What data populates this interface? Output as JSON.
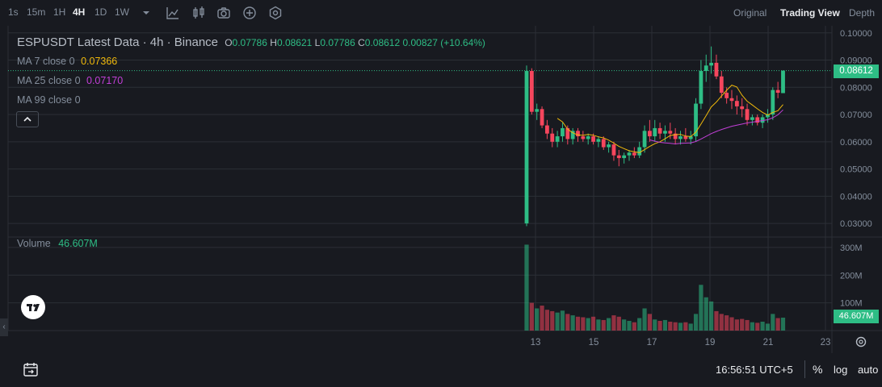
{
  "toolbar": {
    "timeframes": [
      "1s",
      "15m",
      "1H",
      "4H",
      "1D",
      "1W"
    ],
    "active_timeframe": "4H",
    "views": [
      "Original",
      "Trading View",
      "Depth"
    ],
    "active_view": "Trading View"
  },
  "legend": {
    "symbol_line": "ESPUSDT Latest Data · 4h · Binance",
    "o_label": "O",
    "o_value": "0.07786",
    "h_label": "H",
    "h_value": "0.08621",
    "l_label": "L",
    "l_value": "0.07786",
    "c_label": "C",
    "c_value": "0.08612",
    "change": "0.00827 (+10.64%)",
    "ma7_label": "MA 7 close 0",
    "ma7_value": "0.07366",
    "ma25_label": "MA 25 close 0",
    "ma25_value": "0.07170",
    "ma99_label": "MA 99 close 0",
    "volume_label": "Volume",
    "volume_value": "46.607M"
  },
  "price_axis": [
    "0.10000",
    "0.09000",
    "0.08000",
    "0.07000",
    "0.06000",
    "0.05000",
    "0.04000",
    "0.03000"
  ],
  "current_price": "0.08612",
  "volume_axis": [
    "300M",
    "200M",
    "100M"
  ],
  "current_volume": "46.607M",
  "time_axis": [
    "13",
    "15",
    "17",
    "19",
    "21",
    "23"
  ],
  "status": {
    "clock": "16:56:51 UTC+5",
    "percent": "%",
    "log": "log",
    "auto": "auto"
  },
  "colors": {
    "up": "#2ebd85",
    "down": "#f6465d",
    "ma7": "#f0b90b",
    "ma25": "#c23fd7",
    "background": "#181a20",
    "grid": "#2b2f36"
  },
  "chart_data": {
    "type": "candlestick",
    "title": "ESPUSDT Latest Data · 4h · Binance",
    "price_range": [
      0.025,
      0.102
    ],
    "volume_range_millions": [
      0,
      320
    ],
    "x_ticks": [
      "13",
      "15",
      "17",
      "19",
      "21",
      "23"
    ],
    "candles": [
      [
        0.03,
        0.088,
        0.029,
        0.086,
        310
      ],
      [
        0.086,
        0.087,
        0.07,
        0.071,
        100
      ],
      [
        0.071,
        0.074,
        0.068,
        0.072,
        80
      ],
      [
        0.072,
        0.073,
        0.065,
        0.066,
        90
      ],
      [
        0.066,
        0.068,
        0.061,
        0.063,
        75
      ],
      [
        0.063,
        0.065,
        0.058,
        0.06,
        70
      ],
      [
        0.06,
        0.064,
        0.058,
        0.062,
        65
      ],
      [
        0.062,
        0.067,
        0.06,
        0.065,
        72
      ],
      [
        0.065,
        0.066,
        0.059,
        0.061,
        60
      ],
      [
        0.061,
        0.065,
        0.059,
        0.064,
        55
      ],
      [
        0.064,
        0.065,
        0.06,
        0.062,
        50
      ],
      [
        0.062,
        0.064,
        0.06,
        0.061,
        48
      ],
      [
        0.061,
        0.063,
        0.059,
        0.062,
        45
      ],
      [
        0.062,
        0.063,
        0.059,
        0.06,
        50
      ],
      [
        0.06,
        0.062,
        0.058,
        0.061,
        40
      ],
      [
        0.061,
        0.062,
        0.057,
        0.058,
        38
      ],
      [
        0.058,
        0.06,
        0.056,
        0.059,
        45
      ],
      [
        0.059,
        0.06,
        0.053,
        0.055,
        55
      ],
      [
        0.055,
        0.057,
        0.051,
        0.054,
        50
      ],
      [
        0.054,
        0.056,
        0.052,
        0.055,
        40
      ],
      [
        0.055,
        0.057,
        0.053,
        0.056,
        35
      ],
      [
        0.056,
        0.058,
        0.054,
        0.055,
        30
      ],
      [
        0.055,
        0.06,
        0.054,
        0.058,
        45
      ],
      [
        0.058,
        0.066,
        0.056,
        0.064,
        80
      ],
      [
        0.064,
        0.068,
        0.06,
        0.062,
        60
      ],
      [
        0.062,
        0.068,
        0.06,
        0.065,
        40
      ],
      [
        0.065,
        0.067,
        0.061,
        0.063,
        35
      ],
      [
        0.063,
        0.066,
        0.06,
        0.064,
        38
      ],
      [
        0.064,
        0.067,
        0.061,
        0.063,
        32
      ],
      [
        0.063,
        0.065,
        0.059,
        0.061,
        30
      ],
      [
        0.061,
        0.064,
        0.059,
        0.062,
        28
      ],
      [
        0.062,
        0.065,
        0.06,
        0.061,
        30
      ],
      [
        0.061,
        0.064,
        0.059,
        0.062,
        25
      ],
      [
        0.062,
        0.076,
        0.06,
        0.074,
        60
      ],
      [
        0.074,
        0.09,
        0.072,
        0.086,
        165
      ],
      [
        0.086,
        0.092,
        0.082,
        0.088,
        120
      ],
      [
        0.088,
        0.095,
        0.085,
        0.089,
        105
      ],
      [
        0.089,
        0.092,
        0.083,
        0.084,
        70
      ],
      [
        0.084,
        0.086,
        0.076,
        0.078,
        60
      ],
      [
        0.078,
        0.08,
        0.074,
        0.076,
        55
      ],
      [
        0.076,
        0.079,
        0.072,
        0.075,
        48
      ],
      [
        0.075,
        0.077,
        0.07,
        0.073,
        40
      ],
      [
        0.073,
        0.076,
        0.069,
        0.072,
        42
      ],
      [
        0.072,
        0.074,
        0.066,
        0.068,
        38
      ],
      [
        0.068,
        0.07,
        0.066,
        0.069,
        30
      ],
      [
        0.069,
        0.07,
        0.066,
        0.067,
        28
      ],
      [
        0.067,
        0.07,
        0.065,
        0.069,
        32
      ],
      [
        0.069,
        0.072,
        0.067,
        0.07,
        25
      ],
      [
        0.07,
        0.08,
        0.068,
        0.079,
        60
      ],
      [
        0.079,
        0.082,
        0.076,
        0.078,
        45
      ],
      [
        0.07786,
        0.08621,
        0.07786,
        0.08612,
        46.607
      ]
    ],
    "ma7": [
      null,
      null,
      null,
      null,
      null,
      null,
      0.0686,
      0.0673,
      0.0646,
      0.0633,
      0.0625,
      0.0624,
      0.0627,
      0.0624,
      0.0618,
      0.0614,
      0.0606,
      0.0595,
      0.0583,
      0.0575,
      0.0567,
      0.0563,
      0.056,
      0.0571,
      0.0583,
      0.0593,
      0.06,
      0.0611,
      0.0623,
      0.0626,
      0.0627,
      0.0621,
      0.0619,
      0.0635,
      0.0665,
      0.0696,
      0.0728,
      0.0746,
      0.0768,
      0.0789,
      0.0808,
      0.0801,
      0.0771,
      0.0749,
      0.0735,
      0.0721,
      0.0708,
      0.0698,
      0.0708,
      0.0714,
      0.07366
    ],
    "ma25": [
      null,
      null,
      null,
      null,
      null,
      null,
      null,
      null,
      null,
      null,
      null,
      null,
      null,
      null,
      null,
      null,
      null,
      null,
      null,
      null,
      null,
      null,
      null,
      null,
      0.0607,
      0.0602,
      0.0598,
      0.0596,
      0.0594,
      0.0592,
      0.0594,
      0.0595,
      0.0596,
      0.0601,
      0.061,
      0.062,
      0.063,
      0.0638,
      0.0645,
      0.0651,
      0.0657,
      0.0661,
      0.0665,
      0.0669,
      0.0672,
      0.0675,
      0.0678,
      0.0681,
      0.0688,
      0.0699,
      0.0717
    ],
    "ma7_value": "0.07366",
    "ma25_value": "0.07170",
    "last": {
      "open": "0.07786",
      "high": "0.08621",
      "low": "0.07786",
      "close": "0.08612",
      "change": "0.00827 (+10.64%)",
      "volume": "46.607M"
    }
  }
}
